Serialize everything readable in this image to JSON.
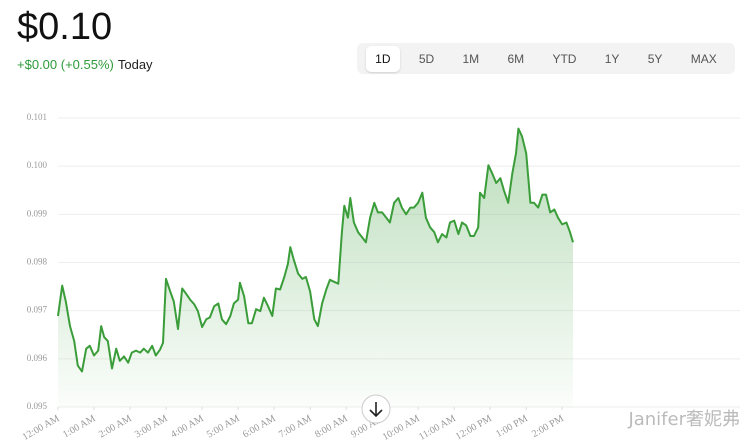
{
  "price": "$0.10",
  "change": "+$0.00 (+0.55%)",
  "period": "Today",
  "ranges": [
    "1D",
    "5D",
    "1M",
    "6M",
    "YTD",
    "1Y",
    "5Y",
    "MAX"
  ],
  "watermark": "Janifer奢妮弗",
  "chart_data": {
    "type": "line",
    "x": [
      0,
      7,
      13,
      20,
      27,
      33,
      40,
      47,
      53,
      60,
      67,
      72,
      77,
      83,
      90,
      97,
      103,
      110,
      117,
      123,
      130,
      137,
      143,
      150,
      157,
      163,
      170,
      175,
      180,
      187,
      193,
      200,
      207,
      213,
      220,
      227,
      233,
      240,
      247,
      253,
      260,
      267,
      273,
      280,
      287,
      293,
      300,
      303,
      310,
      317,
      323,
      330,
      337,
      343,
      350,
      357,
      363,
      370,
      377,
      383,
      387,
      393,
      400,
      407,
      413,
      420,
      427,
      433,
      440,
      447,
      453,
      460,
      467,
      473,
      477,
      483,
      487,
      493,
      500,
      507,
      513,
      520,
      527,
      533,
      540,
      547,
      553,
      560,
      567,
      573,
      580,
      587,
      593,
      600,
      607,
      613,
      620,
      627,
      633,
      640,
      647,
      653,
      660,
      667,
      673,
      680,
      687,
      693,
      700,
      703,
      710,
      717,
      723,
      730,
      737,
      743,
      750,
      757,
      763,
      767,
      773,
      780,
      787,
      793,
      800,
      807,
      813,
      820,
      827,
      833,
      840,
      847,
      853,
      858
    ],
    "series": [
      {
        "name": "Price",
        "color": "#3a9d3a",
        "values": [
          0.09689,
          0.09752,
          0.09719,
          0.09668,
          0.09637,
          0.09586,
          0.09574,
          0.09621,
          0.09627,
          0.09607,
          0.09617,
          0.09668,
          0.09645,
          0.09637,
          0.0958,
          0.09621,
          0.09596,
          0.09605,
          0.09592,
          0.09613,
          0.09617,
          0.09613,
          0.09621,
          0.09613,
          0.09627,
          0.09607,
          0.09619,
          0.09633,
          0.09766,
          0.0974,
          0.09719,
          0.09662,
          0.09746,
          0.09736,
          0.09723,
          0.09713,
          0.09699,
          0.09666,
          0.09682,
          0.09686,
          0.09709,
          0.09715,
          0.09682,
          0.09672,
          0.09689,
          0.09715,
          0.09723,
          0.09758,
          0.0973,
          0.09674,
          0.09674,
          0.09703,
          0.09699,
          0.09727,
          0.09709,
          0.09689,
          0.09746,
          0.09744,
          0.0977,
          0.09797,
          0.09832,
          0.09805,
          0.09777,
          0.09766,
          0.0977,
          0.0974,
          0.09682,
          0.09668,
          0.09715,
          0.09744,
          0.09764,
          0.0976,
          0.09756,
          0.09863,
          0.09918,
          0.09893,
          0.09934,
          0.09883,
          0.09863,
          0.09852,
          0.09842,
          0.09893,
          0.09924,
          0.09904,
          0.09904,
          0.09893,
          0.09883,
          0.09924,
          0.09934,
          0.09914,
          0.099,
          0.09914,
          0.09914,
          0.09924,
          0.09945,
          0.09893,
          0.09873,
          0.09863,
          0.09842,
          0.09859,
          0.09852,
          0.09883,
          0.09887,
          0.09859,
          0.09883,
          0.09877,
          0.09855,
          0.09855,
          0.09873,
          0.09945,
          0.09934,
          0.10002,
          0.09986,
          0.09965,
          0.09975,
          0.09949,
          0.09924,
          0.09986,
          0.10027,
          0.10078,
          0.10062,
          0.10027,
          0.09924,
          0.09924,
          0.09914,
          0.09941,
          0.09941,
          0.09904,
          0.0991,
          0.09893,
          0.09879,
          0.09883,
          0.09863,
          0.09842
        ]
      }
    ],
    "xlim": [
      0,
      858
    ],
    "xticks": [
      {
        "value": 0,
        "label": "12:00 AM"
      },
      {
        "value": 60,
        "label": "1:00 AM"
      },
      {
        "value": 120,
        "label": "2:00 AM"
      },
      {
        "value": 180,
        "label": "3:00 AM"
      },
      {
        "value": 240,
        "label": "4:00 AM"
      },
      {
        "value": 300,
        "label": "5:00 AM"
      },
      {
        "value": 360,
        "label": "6:00 AM"
      },
      {
        "value": 420,
        "label": "7:00 AM"
      },
      {
        "value": 480,
        "label": "8:00 AM"
      },
      {
        "value": 540,
        "label": "9:00 AM"
      },
      {
        "value": 600,
        "label": "10:00 AM"
      },
      {
        "value": 660,
        "label": "11:00 AM"
      },
      {
        "value": 720,
        "label": "12:00 PM"
      },
      {
        "value": 780,
        "label": "1:00 PM"
      },
      {
        "value": 840,
        "label": "2:00 PM"
      }
    ],
    "ylim": [
      0.095,
      0.101
    ],
    "yticks": [
      0.095,
      0.096,
      0.097,
      0.098,
      0.099,
      {
        "value": 0.1,
        "label": "0.100"
      },
      0.101
    ],
    "grid": true
  }
}
